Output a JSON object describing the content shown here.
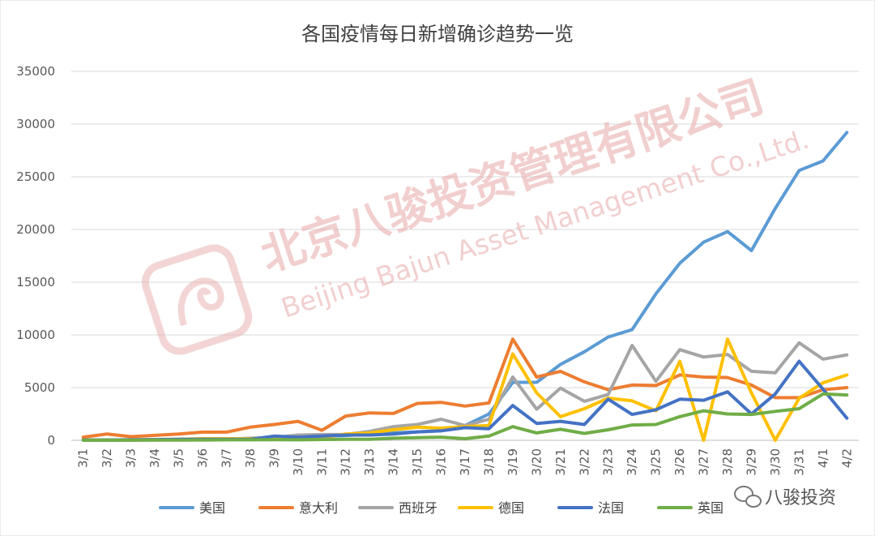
{
  "chart_data": {
    "type": "line",
    "title": "各国疫情每日新增确诊趋势一览",
    "xlabel": "",
    "ylabel": "",
    "ylim": [
      0,
      35000
    ],
    "yticks": [
      0,
      5000,
      10000,
      15000,
      20000,
      25000,
      30000,
      35000
    ],
    "grid": true,
    "legend_position": "bottom",
    "categories": [
      "3/1",
      "3/2",
      "3/3",
      "3/4",
      "3/5",
      "3/6",
      "3/7",
      "3/8",
      "3/9",
      "3/10",
      "3/11",
      "3/12",
      "3/13",
      "3/14",
      "3/15",
      "3/16",
      "3/17",
      "3/18",
      "3/19",
      "3/20",
      "3/21",
      "3/22",
      "3/23",
      "3/24",
      "3/25",
      "3/26",
      "3/27",
      "3/28",
      "3/29",
      "3/30",
      "3/31",
      "4/1",
      "4/2"
    ],
    "series": [
      {
        "name": "美国",
        "color": "#5B9BD5",
        "values": [
          20,
          20,
          30,
          40,
          60,
          70,
          120,
          100,
          150,
          300,
          400,
          450,
          600,
          700,
          800,
          900,
          1400,
          2500,
          5500,
          5500,
          7200,
          8400,
          9800,
          10500,
          13900,
          16800,
          18800,
          19800,
          18000,
          22000,
          25600,
          26500,
          29200
        ]
      },
      {
        "name": "意大利",
        "color": "#ED7D31",
        "values": [
          300,
          600,
          350,
          470,
          590,
          780,
          780,
          1250,
          1500,
          1800,
          950,
          2300,
          2600,
          2550,
          3500,
          3600,
          3250,
          3550,
          9600,
          6000,
          6550,
          5550,
          4800,
          5250,
          5200,
          6200,
          6000,
          5950,
          5250,
          4050,
          4050,
          4800,
          5000
        ]
      },
      {
        "name": "西班牙",
        "color": "#A5A5A5",
        "values": [
          30,
          20,
          30,
          30,
          60,
          100,
          100,
          200,
          250,
          500,
          550,
          550,
          850,
          1300,
          1500,
          2000,
          1400,
          2000,
          6000,
          2950,
          4950,
          3700,
          4350,
          9000,
          5600,
          8600,
          7900,
          8150,
          6550,
          6400,
          9250,
          7700,
          8100
        ]
      },
      {
        "name": "德国",
        "color": "#FFC000",
        "values": [
          30,
          30,
          50,
          80,
          100,
          150,
          150,
          150,
          250,
          300,
          250,
          600,
          700,
          1000,
          1250,
          1150,
          1300,
          1400,
          8200,
          4500,
          2250,
          3000,
          4000,
          3750,
          2800,
          7500,
          0,
          9600,
          4500,
          0,
          4000,
          5450,
          6200
        ]
      },
      {
        "name": "法国",
        "color": "#4472C4",
        "values": [
          30,
          30,
          50,
          70,
          90,
          100,
          100,
          100,
          400,
          300,
          400,
          500,
          500,
          600,
          800,
          900,
          1200,
          1100,
          3300,
          1600,
          1800,
          1500,
          3900,
          2450,
          2900,
          3900,
          3800,
          4600,
          2500,
          4400,
          7500,
          4850,
          2100
        ]
      },
      {
        "name": "英国",
        "color": "#70AD47",
        "values": [
          10,
          10,
          10,
          20,
          20,
          30,
          50,
          50,
          60,
          50,
          80,
          100,
          100,
          200,
          250,
          300,
          150,
          400,
          1300,
          700,
          1050,
          650,
          1000,
          1450,
          1500,
          2250,
          2800,
          2500,
          2450,
          2750,
          3000,
          4400,
          4300
        ]
      }
    ]
  },
  "watermark": {
    "company": "北京八骏投资管理有限公司",
    "company_en": "Beijing Bajun Asset Management Co.,Ltd.",
    "wechat_label": "八骏投资"
  }
}
